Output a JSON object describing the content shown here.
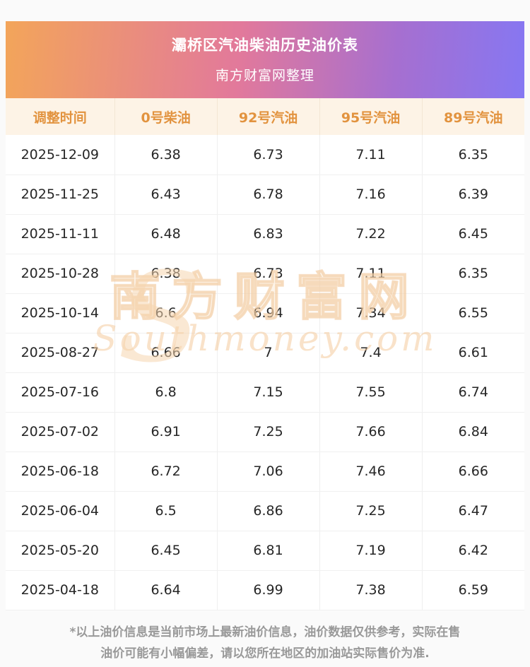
{
  "header": {
    "title": "灞桥区汽油柴油历史油价表",
    "subtitle": "南方财富网整理",
    "gradient_left": "#f3a55a",
    "gradient_mid": "#e2799b",
    "gradient_right": "#8677f2",
    "text_color": "#ffffff"
  },
  "table": {
    "header_bg": "#fdf3e6",
    "header_text_color": "#e2933f",
    "columns": [
      "调整时间",
      "0号柴油",
      "92号汽油",
      "95号汽油",
      "89号汽油"
    ],
    "rows": [
      [
        "2025-12-09",
        "6.38",
        "6.73",
        "7.11",
        "6.35"
      ],
      [
        "2025-11-25",
        "6.43",
        "6.78",
        "7.16",
        "6.39"
      ],
      [
        "2025-11-11",
        "6.48",
        "6.83",
        "7.22",
        "6.45"
      ],
      [
        "2025-10-28",
        "6.38",
        "6.73",
        "7.11",
        "6.35"
      ],
      [
        "2025-10-14",
        "6.6",
        "6.94",
        "7.34",
        "6.55"
      ],
      [
        "2025-08-27",
        "6.66",
        "7",
        "7.4",
        "6.61"
      ],
      [
        "2025-07-16",
        "6.8",
        "7.15",
        "7.55",
        "6.74"
      ],
      [
        "2025-07-02",
        "6.91",
        "7.25",
        "7.66",
        "6.84"
      ],
      [
        "2025-06-18",
        "6.72",
        "7.06",
        "7.46",
        "6.66"
      ],
      [
        "2025-06-04",
        "6.5",
        "6.86",
        "7.25",
        "6.47"
      ],
      [
        "2025-05-20",
        "6.45",
        "6.81",
        "7.19",
        "6.42"
      ],
      [
        "2025-04-18",
        "6.64",
        "6.99",
        "7.38",
        "6.59"
      ]
    ]
  },
  "watermark": {
    "cn": "南方财富网",
    "en": "Southmoney.com"
  },
  "footer": {
    "line1": "*以上油价信息是当前市场上最新油价信息，油价数据仅供参考，实际在售",
    "line2": "油价可能有小幅偏差，请以您所在地区的加油站实际售价为准."
  }
}
